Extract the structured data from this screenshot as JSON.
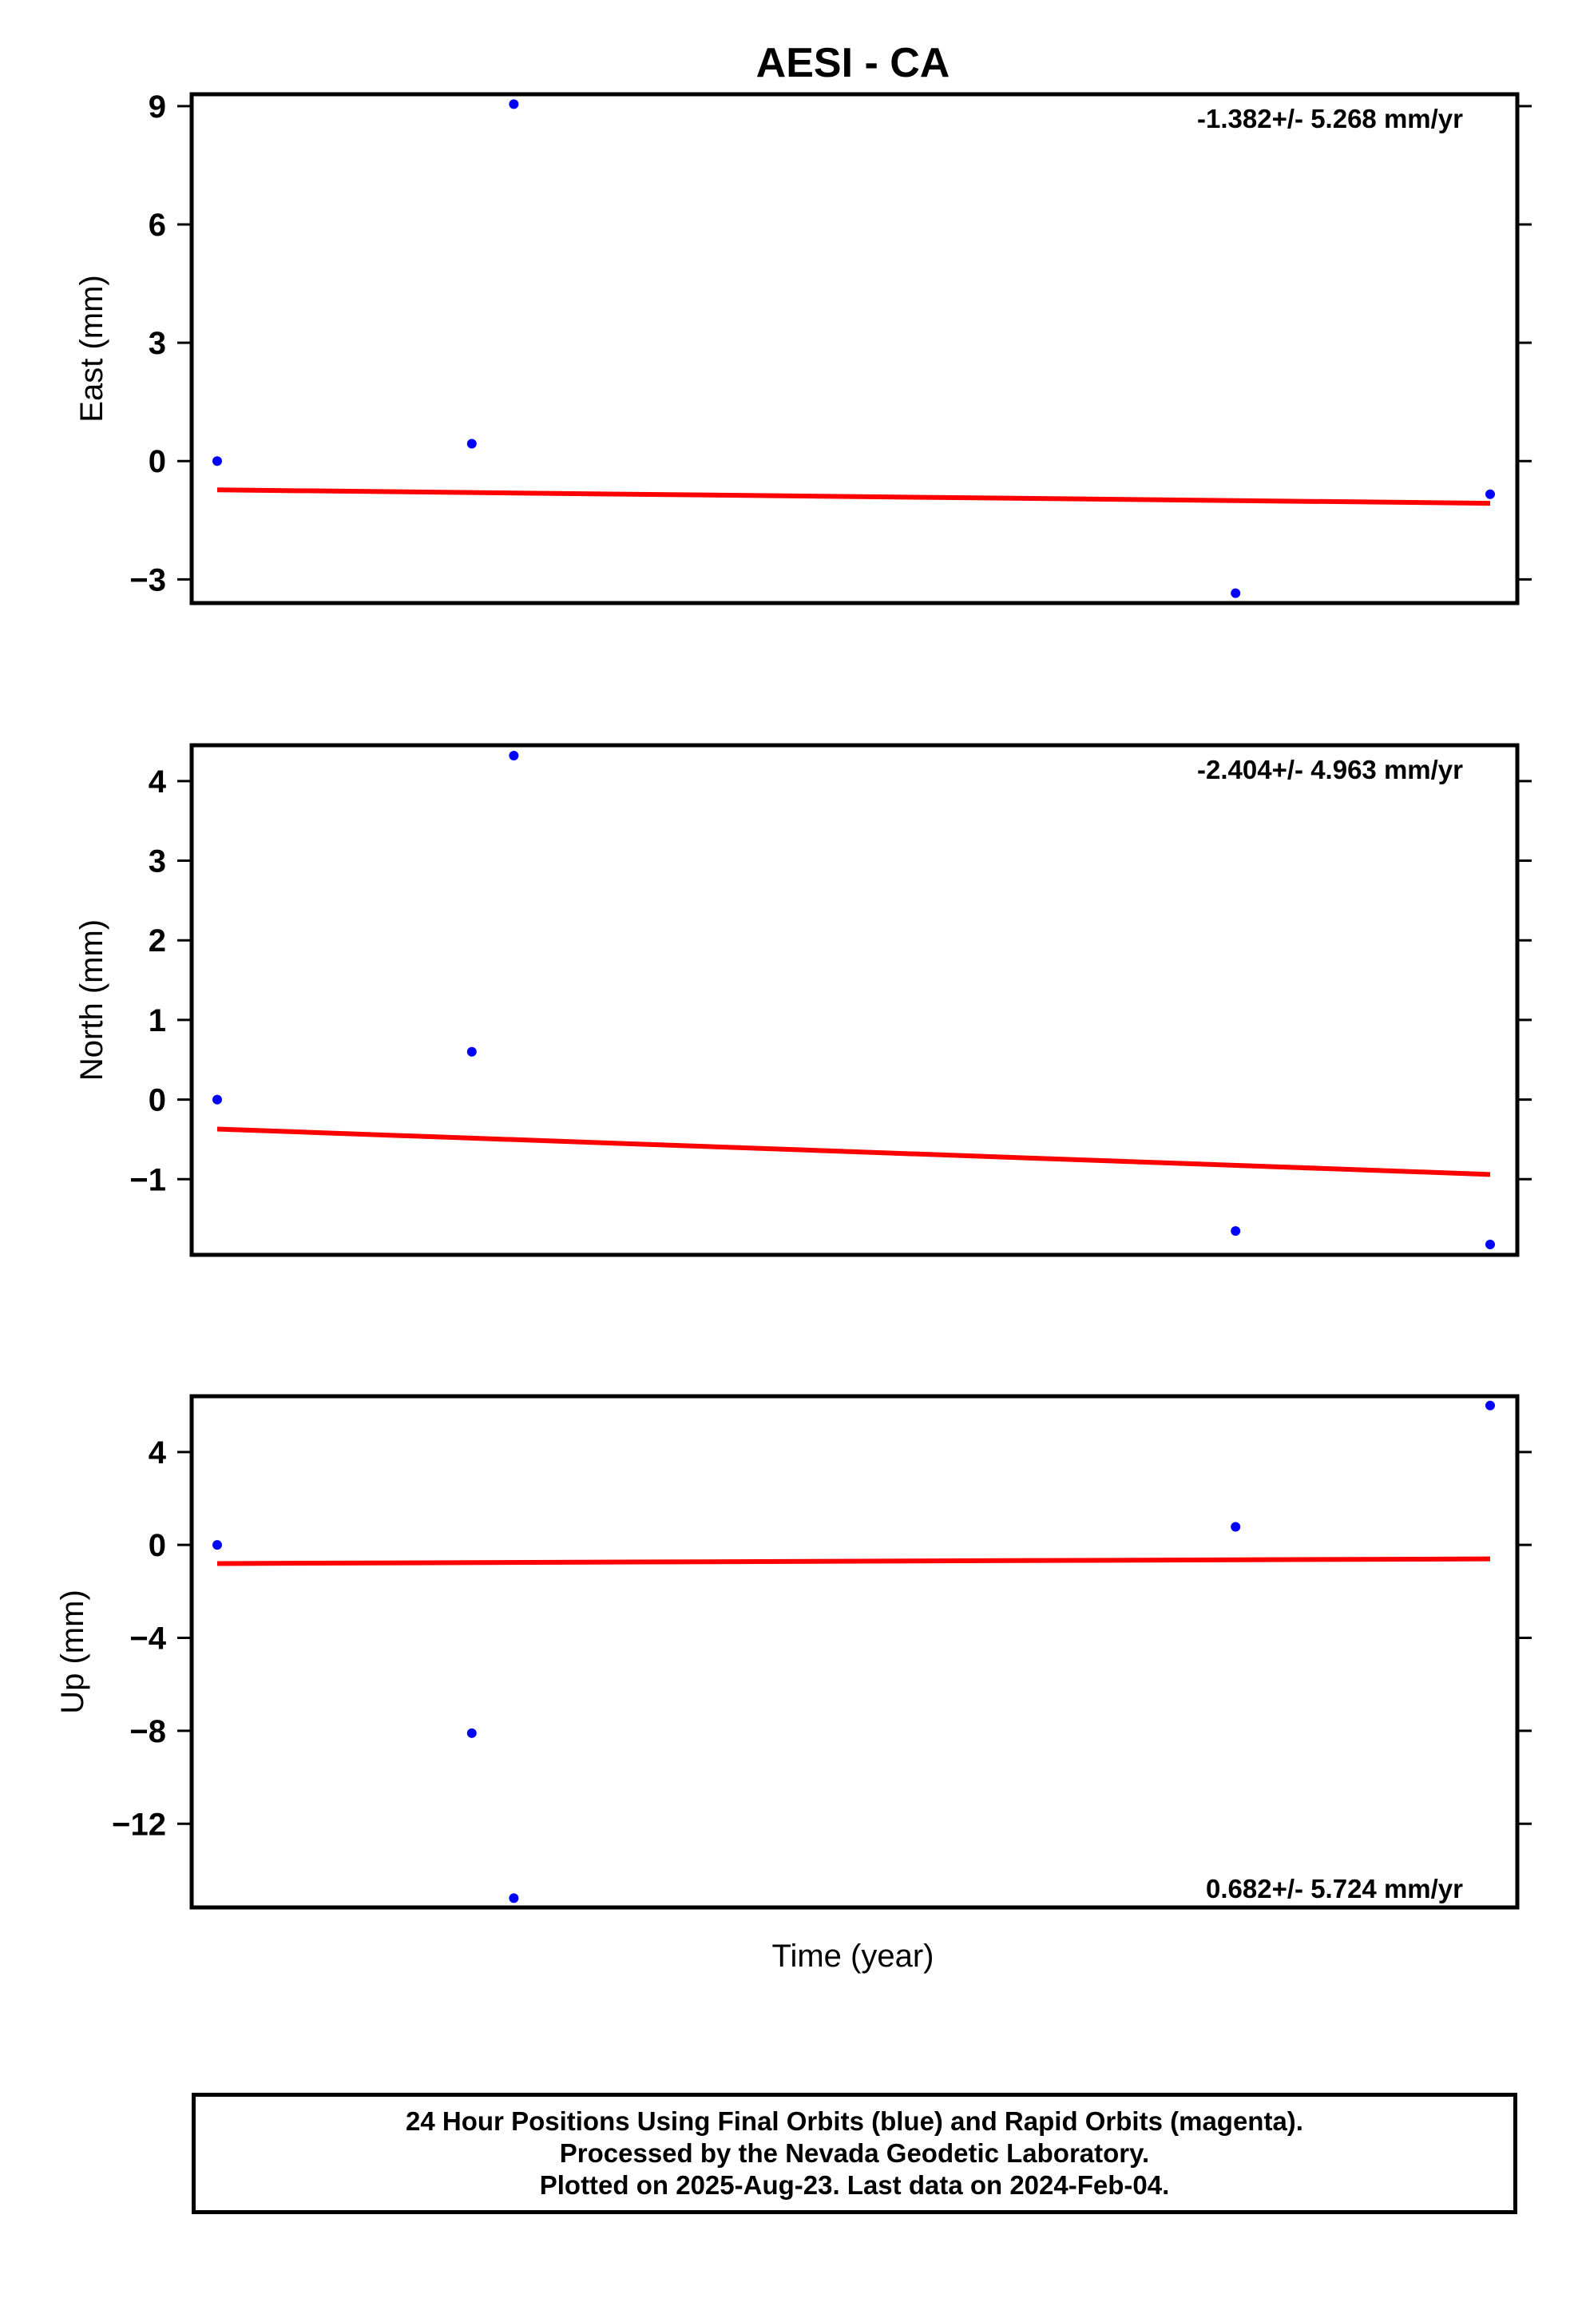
{
  "title": "AESI - CA",
  "xlabel": "Time (year)",
  "colors": {
    "points": "#0000ff",
    "trend": "#ff0000",
    "axes": "#000000"
  },
  "chart_data": [
    {
      "type": "scatter",
      "ylabel": "East (mm)",
      "yticks": [
        9,
        6,
        3,
        0,
        -3
      ],
      "ylim": [
        -3.6,
        9.3
      ],
      "rate_text": "-1.382+/- 5.268 mm/yr",
      "rate_position": "top-right",
      "series": [
        {
          "x": [
            0.0,
            0.2,
            0.233,
            0.8,
            1.0
          ],
          "y": [
            0.0,
            0.44,
            9.05,
            -3.35,
            -0.84
          ]
        }
      ],
      "trend": {
        "x": [
          0.0,
          1.0
        ],
        "y": [
          -0.73,
          -1.07
        ]
      }
    },
    {
      "type": "scatter",
      "ylabel": "North (mm)",
      "yticks": [
        4,
        3,
        2,
        1,
        0,
        -1
      ],
      "ylim": [
        -1.95,
        4.45
      ],
      "rate_text": "-2.404+/- 4.963 mm/yr",
      "rate_position": "top-right",
      "series": [
        {
          "x": [
            0.0,
            0.2,
            0.233,
            0.8,
            1.0
          ],
          "y": [
            0.0,
            0.6,
            4.32,
            -1.65,
            -1.82
          ]
        }
      ],
      "trend": {
        "x": [
          0.0,
          1.0
        ],
        "y": [
          -0.37,
          -0.94
        ]
      }
    },
    {
      "type": "scatter",
      "ylabel": "Up (mm)",
      "yticks": [
        4,
        0,
        -4,
        -8,
        -12
      ],
      "ylim": [
        -15.6,
        6.4
      ],
      "rate_text": "0.682+/- 5.724 mm/yr",
      "rate_position": "bottom-right",
      "series": [
        {
          "x": [
            0.0,
            0.2,
            0.233,
            0.8,
            1.0
          ],
          "y": [
            0.0,
            -8.1,
            -15.2,
            0.78,
            6.0
          ]
        }
      ],
      "trend": {
        "x": [
          0.0,
          1.0
        ],
        "y": [
          -0.8,
          -0.6
        ]
      }
    }
  ],
  "footer": {
    "line1": "24 Hour Positions Using Final Orbits (blue) and Rapid Orbits (magenta).",
    "line2": "Processed by the Nevada Geodetic Laboratory.",
    "line3": "Plotted on 2025-Aug-23. Last data on 2024-Feb-04."
  }
}
